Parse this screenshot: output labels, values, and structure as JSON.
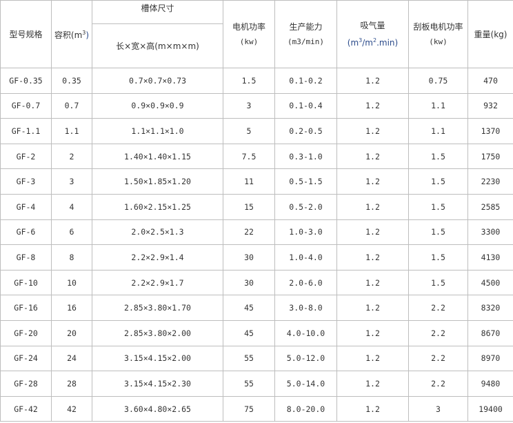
{
  "headers": {
    "model": "型号规格",
    "volume": "容积(m",
    "volume_sup": "3",
    "volume_close": ")",
    "tank": "槽体尺寸",
    "tank_sub": "长×宽×高(m×m×m)",
    "motor": "电机功率",
    "motor_unit": "(kw)",
    "capacity": "生产能力",
    "capacity_unit": "(m3/min)",
    "suction": "吸气量",
    "suction_unit_a": "(m",
    "suction_sup1": "3",
    "suction_unit_b": "/m",
    "suction_sup2": "2",
    "suction_unit_c": ".min)",
    "scraper": "刮板电机功率",
    "scraper_unit": "(kw)",
    "weight": "重量(kg)"
  },
  "rows": [
    [
      "GF-0.35",
      "0.35",
      "0.7×0.7×0.73",
      "1.5",
      "0.1-0.2",
      "1.2",
      "0.75",
      "470"
    ],
    [
      "GF-0.7",
      "0.7",
      "0.9×0.9×0.9",
      "3",
      "0.1-0.4",
      "1.2",
      "1.1",
      "932"
    ],
    [
      "GF-1.1",
      "1.1",
      "1.1×1.1×1.0",
      "5",
      "0.2-0.5",
      "1.2",
      "1.1",
      "1370"
    ],
    [
      "GF-2",
      "2",
      "1.40×1.40×1.15",
      "7.5",
      "0.3-1.0",
      "1.2",
      "1.5",
      "1750"
    ],
    [
      "GF-3",
      "3",
      "1.50×1.85×1.20",
      "11",
      "0.5-1.5",
      "1.2",
      "1.5",
      "2230"
    ],
    [
      "GF-4",
      "4",
      "1.60×2.15×1.25",
      "15",
      "0.5-2.0",
      "1.2",
      "1.5",
      "2585"
    ],
    [
      "GF-6",
      "6",
      "2.0×2.5×1.3",
      "22",
      "1.0-3.0",
      "1.2",
      "1.5",
      "3300"
    ],
    [
      "GF-8",
      "8",
      "2.2×2.9×1.4",
      "30",
      "1.0-4.0",
      "1.2",
      "1.5",
      "4130"
    ],
    [
      "GF-10",
      "10",
      "2.2×2.9×1.7",
      "30",
      "2.0-6.0",
      "1.2",
      "1.5",
      "4500"
    ],
    [
      "GF-16",
      "16",
      "2.85×3.80×1.70",
      "45",
      "3.0-8.0",
      "1.2",
      "2.2",
      "8320"
    ],
    [
      "GF-20",
      "20",
      "2.85×3.80×2.00",
      "45",
      "4.0-10.0",
      "1.2",
      "2.2",
      "8670"
    ],
    [
      "GF-24",
      "24",
      "3.15×4.15×2.00",
      "55",
      "5.0-12.0",
      "1.2",
      "2.2",
      "8970"
    ],
    [
      "GF-28",
      "28",
      "3.15×4.15×2.30",
      "55",
      "5.0-14.0",
      "1.2",
      "2.2",
      "9480"
    ],
    [
      "GF-42",
      "42",
      "3.60×4.80×2.65",
      "75",
      "8.0-20.0",
      "1.2",
      "3",
      "19400"
    ]
  ]
}
